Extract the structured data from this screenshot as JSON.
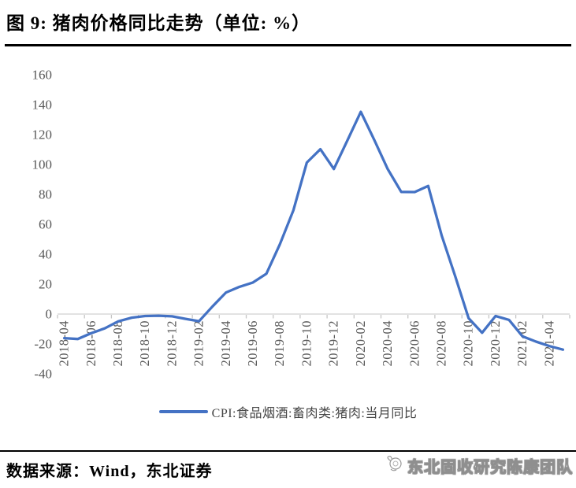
{
  "header": {
    "title": "图 9: 猪肉价格同比走势（单位: %）"
  },
  "chart_data": {
    "type": "line",
    "title": "猪肉价格同比走势",
    "unit": "%",
    "x": [
      "2018-04",
      "2018-05",
      "2018-06",
      "2018-07",
      "2018-08",
      "2018-09",
      "2018-10",
      "2018-11",
      "2018-12",
      "2019-01",
      "2019-02",
      "2019-03",
      "2019-04",
      "2019-05",
      "2019-06",
      "2019-07",
      "2019-08",
      "2019-09",
      "2019-10",
      "2019-11",
      "2019-12",
      "2020-01",
      "2020-02",
      "2020-03",
      "2020-04",
      "2020-05",
      "2020-06",
      "2020-07",
      "2020-08",
      "2020-09",
      "2020-10",
      "2020-11",
      "2020-12",
      "2021-01",
      "2021-02",
      "2021-03",
      "2021-04",
      "2021-05"
    ],
    "series": [
      {
        "name": "CPI:食品烟酒:畜肉类:猪肉:当月同比",
        "color": "#4472C4",
        "values": [
          -16.1,
          -16.7,
          -12.8,
          -9.6,
          -4.9,
          -2.4,
          -1.3,
          -1.1,
          -1.5,
          -3.2,
          -4.8,
          5.1,
          14.4,
          18.2,
          21.1,
          27.0,
          46.7,
          69.3,
          101.3,
          110.2,
          97.0,
          116.0,
          135.2,
          116.4,
          96.9,
          81.7,
          81.6,
          85.7,
          52.6,
          25.5,
          -2.8,
          -12.5,
          -1.3,
          -3.9,
          -14.9,
          -18.4,
          -21.4,
          -23.8
        ]
      }
    ],
    "ylim": [
      -40,
      160
    ],
    "yticks": [
      160,
      140,
      120,
      100,
      80,
      60,
      40,
      20,
      0,
      -20,
      -40
    ],
    "xlabel_every": 2,
    "grid": false,
    "legend_position": "bottom",
    "axis_color": "#D9D9D9",
    "tick_color": "#C6C6C6",
    "tick_label_color": "#595959"
  },
  "footer": {
    "source": "数据来源：Wind，东北证券",
    "watermark": "东北固收研究陈康团队"
  }
}
